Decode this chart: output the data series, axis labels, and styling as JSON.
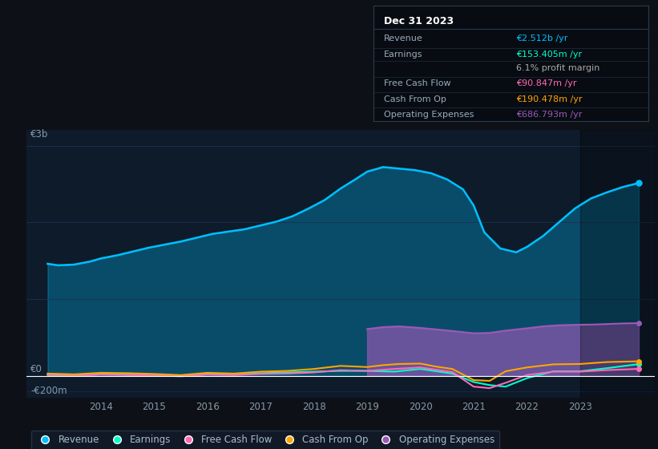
{
  "background_color": "#0d1117",
  "plot_bg_color": "#0d1b2a",
  "grid_color": "#1e3050",
  "colors": {
    "revenue": "#00bfff",
    "earnings": "#00ffcc",
    "free_cash_flow": "#ff69b4",
    "cash_from_op": "#ffa500",
    "operating_expenses": "#9b59b6"
  },
  "ylabel_top": "€3b",
  "ylabel_zero": "€0",
  "ylabel_bot": "-€200m",
  "xlim": [
    2012.6,
    2024.4
  ],
  "ylim": [
    -280,
    3200
  ],
  "info_box": {
    "title": "Dec 31 2023",
    "rows": [
      {
        "label": "Revenue",
        "value": "€2.512b /yr",
        "value_color": "#00bfff",
        "label_color": "#9aaabb"
      },
      {
        "label": "Earnings",
        "value": "€153.405m /yr",
        "value_color": "#00ffcc",
        "label_color": "#9aaabb"
      },
      {
        "label": "",
        "value": "6.1% profit margin",
        "value_color": "#aaaaaa",
        "label_color": "#9aaabb"
      },
      {
        "label": "Free Cash Flow",
        "value": "€90.847m /yr",
        "value_color": "#ff69b4",
        "label_color": "#9aaabb"
      },
      {
        "label": "Cash From Op",
        "value": "€190.478m /yr",
        "value_color": "#ffa500",
        "label_color": "#9aaabb"
      },
      {
        "label": "Operating Expenses",
        "value": "€686.793m /yr",
        "value_color": "#9b59b6",
        "label_color": "#9aaabb"
      }
    ]
  },
  "revenue": {
    "x": [
      2013.0,
      2013.2,
      2013.5,
      2013.8,
      2014.0,
      2014.3,
      2014.6,
      2014.9,
      2015.2,
      2015.5,
      2015.8,
      2016.1,
      2016.4,
      2016.7,
      2017.0,
      2017.3,
      2017.6,
      2017.9,
      2018.2,
      2018.5,
      2018.8,
      2019.0,
      2019.3,
      2019.6,
      2019.9,
      2020.2,
      2020.5,
      2020.8,
      2021.0,
      2021.2,
      2021.5,
      2021.8,
      2022.0,
      2022.3,
      2022.6,
      2022.9,
      2023.2,
      2023.5,
      2023.8,
      2024.1
    ],
    "y": [
      1460,
      1440,
      1450,
      1490,
      1530,
      1570,
      1620,
      1670,
      1710,
      1750,
      1800,
      1850,
      1880,
      1910,
      1960,
      2010,
      2080,
      2180,
      2290,
      2440,
      2570,
      2660,
      2720,
      2700,
      2680,
      2640,
      2560,
      2430,
      2220,
      1870,
      1660,
      1610,
      1680,
      1820,
      2000,
      2180,
      2310,
      2390,
      2460,
      2512
    ]
  },
  "earnings": {
    "x": [
      2013.0,
      2013.5,
      2014.0,
      2014.5,
      2015.0,
      2015.5,
      2016.0,
      2016.5,
      2017.0,
      2017.5,
      2018.0,
      2018.5,
      2019.0,
      2019.5,
      2020.0,
      2020.3,
      2020.6,
      2021.0,
      2021.3,
      2021.6,
      2022.0,
      2022.5,
      2023.0,
      2023.5,
      2024.1
    ],
    "y": [
      20,
      15,
      25,
      30,
      15,
      5,
      30,
      20,
      35,
      45,
      55,
      65,
      65,
      55,
      90,
      60,
      30,
      -80,
      -120,
      -140,
      -30,
      60,
      60,
      100,
      153
    ]
  },
  "free_cash_flow": {
    "x": [
      2013.0,
      2013.5,
      2014.0,
      2014.5,
      2015.0,
      2015.5,
      2016.0,
      2016.5,
      2017.0,
      2017.5,
      2018.0,
      2018.5,
      2019.0,
      2019.5,
      2020.0,
      2020.3,
      2020.6,
      2021.0,
      2021.3,
      2021.6,
      2022.0,
      2022.5,
      2023.0,
      2023.5,
      2024.1
    ],
    "y": [
      5,
      0,
      15,
      10,
      5,
      -5,
      15,
      10,
      25,
      30,
      45,
      75,
      65,
      90,
      110,
      80,
      50,
      -140,
      -160,
      -90,
      10,
      55,
      55,
      75,
      91
    ]
  },
  "cash_from_op": {
    "x": [
      2013.0,
      2013.5,
      2014.0,
      2014.5,
      2015.0,
      2015.5,
      2016.0,
      2016.5,
      2017.0,
      2017.5,
      2018.0,
      2018.5,
      2019.0,
      2019.3,
      2019.6,
      2020.0,
      2020.3,
      2020.6,
      2021.0,
      2021.3,
      2021.6,
      2022.0,
      2022.5,
      2023.0,
      2023.5,
      2024.1
    ],
    "y": [
      30,
      20,
      40,
      35,
      25,
      10,
      40,
      30,
      55,
      65,
      90,
      130,
      115,
      140,
      155,
      160,
      120,
      90,
      -55,
      -65,
      60,
      110,
      150,
      155,
      180,
      190
    ]
  },
  "operating_expenses": {
    "x": [
      2019.0,
      2019.3,
      2019.6,
      2020.0,
      2020.3,
      2020.6,
      2021.0,
      2021.3,
      2021.6,
      2022.0,
      2022.3,
      2022.6,
      2022.9,
      2023.2,
      2023.5,
      2023.8,
      2024.1
    ],
    "y": [
      610,
      635,
      645,
      625,
      605,
      585,
      555,
      560,
      590,
      620,
      645,
      660,
      665,
      668,
      675,
      683,
      687
    ]
  },
  "xticks": [
    2014,
    2015,
    2016,
    2017,
    2018,
    2019,
    2020,
    2021,
    2022,
    2023
  ],
  "shade_start": 2023.0,
  "shade_end": 2024.4,
  "legend": [
    {
      "label": "Revenue",
      "color": "#00bfff"
    },
    {
      "label": "Earnings",
      "color": "#00ffcc"
    },
    {
      "label": "Free Cash Flow",
      "color": "#ff69b4"
    },
    {
      "label": "Cash From Op",
      "color": "#ffa500"
    },
    {
      "label": "Operating Expenses",
      "color": "#9b59b6"
    }
  ]
}
